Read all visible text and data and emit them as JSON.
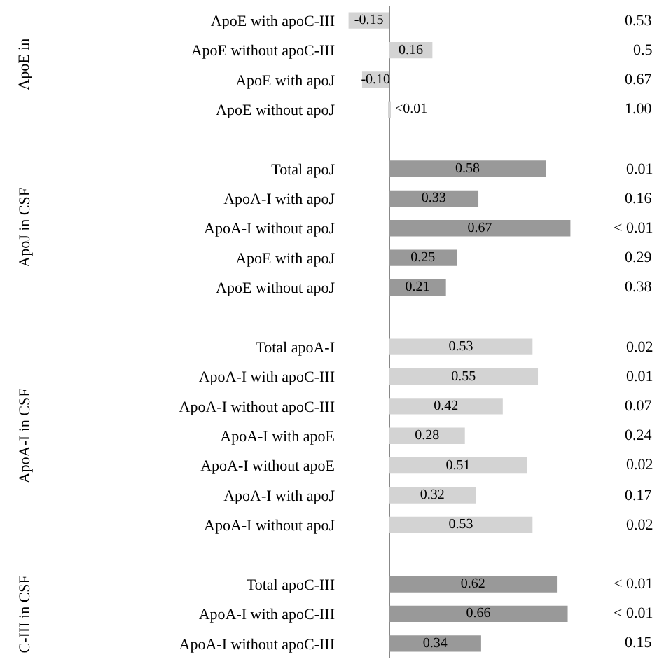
{
  "chart_data": {
    "type": "bar",
    "orientation": "horizontal",
    "categories": [
      "ApoE with apoC-III",
      "ApoE without apoC-III",
      "ApoE with apoJ",
      "ApoE without apoJ",
      null,
      "Total apoJ",
      "ApoA-I with apoJ",
      "ApoA-I without apoJ",
      "ApoE with apoJ",
      "ApoE without apoJ",
      null,
      "Total apoA-I",
      "ApoA-I with apoC-III",
      "ApoA-I without apoC-III",
      "ApoA-I with apoE",
      "ApoA-I without apoE",
      "ApoA-I with apoJ",
      "ApoA-I without apoJ",
      null,
      "Total apoC-III",
      "ApoA-I with apoC-III",
      "ApoA-I without apoC-III"
    ],
    "values": [
      -0.15,
      0.16,
      -0.1,
      0.005,
      null,
      0.58,
      0.33,
      0.67,
      0.25,
      0.21,
      null,
      0.53,
      0.55,
      0.42,
      0.28,
      0.51,
      0.32,
      0.53,
      null,
      0.62,
      0.66,
      0.34
    ],
    "value_labels": [
      "-0.15",
      "0.16",
      "-0.10",
      "<0.01",
      null,
      "0.58",
      "0.33",
      "0.67",
      "0.25",
      "0.21",
      null,
      "0.53",
      "0.55",
      "0.42",
      "0.28",
      "0.51",
      "0.32",
      "0.53",
      null,
      "0.62",
      "0.66",
      "0.34"
    ],
    "colors": [
      "#d3d3d3",
      "#d3d3d3",
      "#d3d3d3",
      "#d3d3d3",
      null,
      "#999999",
      "#999999",
      "#999999",
      "#999999",
      "#999999",
      null,
      "#d3d3d3",
      "#d3d3d3",
      "#d3d3d3",
      "#d3d3d3",
      "#d3d3d3",
      "#d3d3d3",
      "#d3d3d3",
      null,
      "#999999",
      "#999999",
      "#999999"
    ],
    "tick_labels": "y",
    "annotations": [
      "0.53",
      "0.5",
      "0.67",
      "1.00",
      "0.01",
      "0.16",
      "< 0.01",
      "0.29",
      "0.38",
      "0.02",
      "0.01",
      "0.07",
      "0.24",
      "0.02",
      "0.17",
      "0.02",
      "< 0.01",
      "< 0.01",
      "0.15",
      "ApoE in",
      "ApoJ in CSF",
      "ApoA-I in CSF",
      "C-III in CSF"
    ]
  }
}
